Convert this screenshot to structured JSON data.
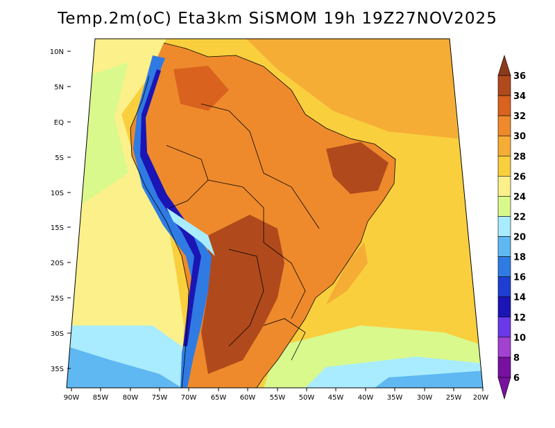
{
  "title": "Temp.2m(oC) Eta3km SiSMOM 19h 19Z27NOV2025",
  "lon_ticks": [
    "90W",
    "85W",
    "80W",
    "75W",
    "70W",
    "65W",
    "60W",
    "55W",
    "50W",
    "45W",
    "40W",
    "35W",
    "30W",
    "25W",
    "20W"
  ],
  "lat_ticks": [
    "10N",
    "5N",
    "EQ",
    "5S",
    "10S",
    "15S",
    "20S",
    "25S",
    "30S",
    "35S"
  ],
  "colorbar": {
    "levels": [
      "36",
      "34",
      "32",
      "30",
      "28",
      "26",
      "24",
      "22",
      "20",
      "18",
      "16",
      "14",
      "12",
      "10",
      "8",
      "6"
    ],
    "colors": [
      "#8b3a1a",
      "#b04a1c",
      "#d8621e",
      "#ee8a2c",
      "#f5ad35",
      "#f9cf3e",
      "#fbf089",
      "#d9f98d",
      "#a9ecff",
      "#5fb8f2",
      "#2f7be3",
      "#1d3ed1",
      "#1b15b5",
      "#6a39e8",
      "#a341d1",
      "#78119f"
    ]
  },
  "map_colors": {
    "ocean_warm": "#f9cf3e",
    "ocean_mid": "#fbf089",
    "ocean_cool": "#d9f98d",
    "ocean_cold": "#a9ecff",
    "land_hot": "#ee8a2c",
    "land_very_hot": "#b04a1c",
    "andes": "#2f7be3"
  }
}
